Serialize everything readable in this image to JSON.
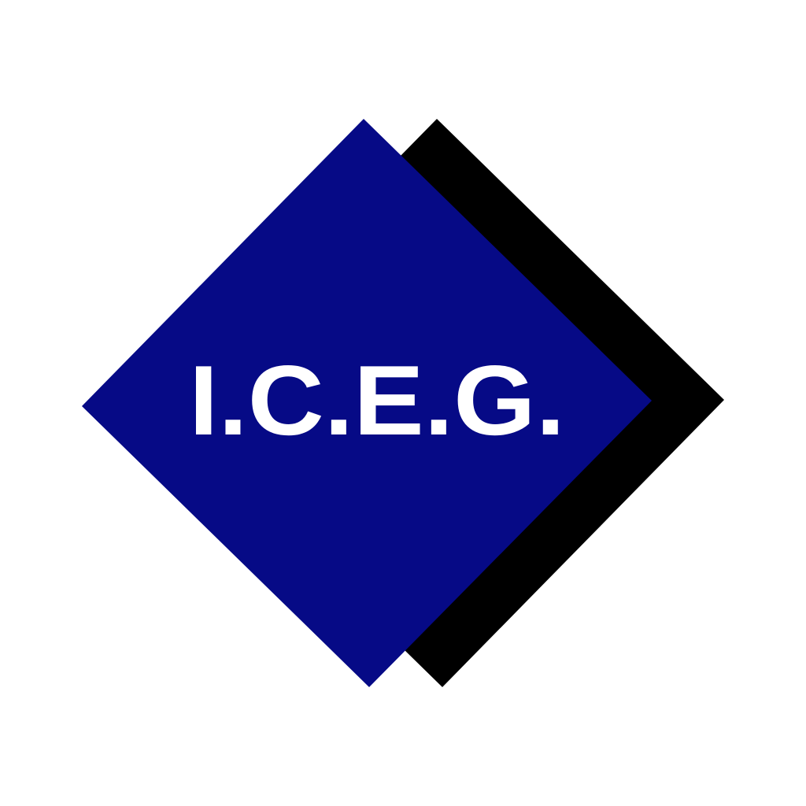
{
  "logo": {
    "text": "I.C.E.G.",
    "colors": {
      "background": "#ffffff",
      "front_diamond": "#060a86",
      "shadow_diamond": "#000000",
      "text": "#ffffff"
    }
  }
}
